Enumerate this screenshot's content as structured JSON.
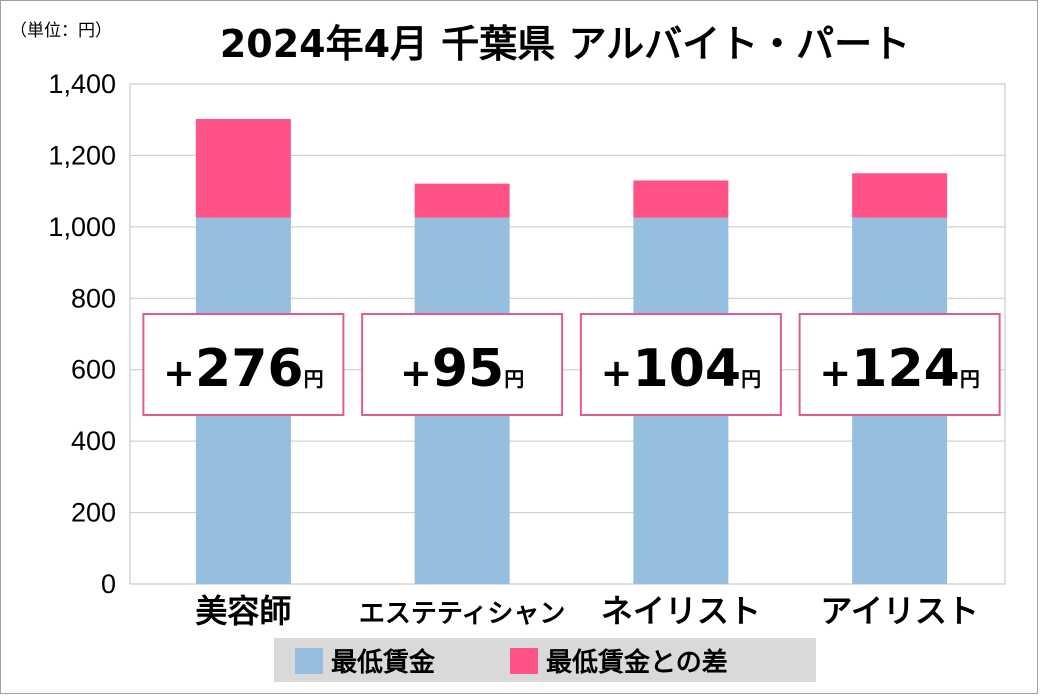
{
  "chart_data": {
    "type": "bar",
    "stacked": true,
    "title": "2024年4月 千葉県 アルバイト・パート",
    "unit_label": "（単位：円）",
    "categories": [
      "美容師",
      "エステティシャン",
      "ネイリスト",
      "アイリスト"
    ],
    "series": [
      {
        "name": "最低賃金",
        "color": "#95bedf",
        "values": [
          1026,
          1026,
          1026,
          1026
        ]
      },
      {
        "name": "最低賃金との差",
        "color": "#ff5287",
        "values": [
          276,
          95,
          104,
          124
        ]
      }
    ],
    "ylim": [
      0,
      1400
    ],
    "yticks": [
      "0",
      "200",
      "400",
      "600",
      "800",
      "1,000",
      "1,200",
      "1,400"
    ],
    "ytick_values": [
      0,
      200,
      400,
      600,
      800,
      1000,
      1200,
      1400
    ],
    "grid": true,
    "legend_position": "bottom",
    "annotations": [
      {
        "sign": "+",
        "value": "276",
        "unit": "円"
      },
      {
        "sign": "+",
        "value": "95",
        "unit": "円"
      },
      {
        "sign": "+",
        "value": "104",
        "unit": "円"
      },
      {
        "sign": "+",
        "value": "124",
        "unit": "円"
      }
    ],
    "annotation_border_color": "#e05a94"
  }
}
